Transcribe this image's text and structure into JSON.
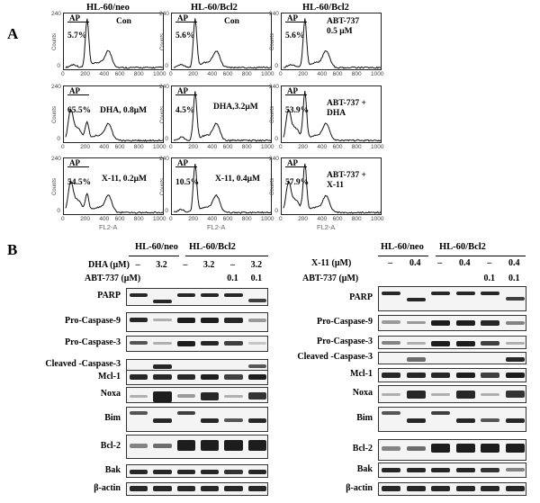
{
  "panel_a": {
    "letter": "A",
    "columns": [
      "HL-60/neo",
      "HL-60/Bcl2",
      "HL-60/Bcl2"
    ],
    "ap_label": "AP",
    "y_axis_label": "Counts",
    "y_ticks": [
      "240",
      "0"
    ],
    "x_axis_label": "FL2-A",
    "x_ticks": [
      "0",
      "200",
      "400",
      "600",
      "800",
      "1000"
    ],
    "plots": [
      {
        "pct": "5.7%",
        "cond1": "Con",
        "cond2": ""
      },
      {
        "pct": "5.6%",
        "cond1": "Con",
        "cond2": ""
      },
      {
        "pct": "5.6%",
        "cond1": "ABT-737",
        "cond2": "0.5 μM"
      },
      {
        "pct": "65.5%",
        "cond1": "DHA,  0.8μM",
        "cond2": ""
      },
      {
        "pct": "4.5%",
        "cond1": "DHA,3.2μM",
        "cond2": ""
      },
      {
        "pct": "53.9%",
        "cond1": "ABT-737 +",
        "cond2": "DHA"
      },
      {
        "pct": "54.5%",
        "cond1": "X-11,  0.2μM",
        "cond2": ""
      },
      {
        "pct": "10.5%",
        "cond1": "X-11,  0.4μM",
        "cond2": ""
      },
      {
        "pct": "57.9%",
        "cond1": "ABT-737 +",
        "cond2": "X-11"
      }
    ]
  },
  "panel_b": {
    "letter": "B",
    "left": {
      "group1": "HL-60/neo",
      "group2": "HL-60/Bcl2",
      "row1_label": "DHA  (μM)",
      "row1_values": [
        "–",
        "3.2",
        "–",
        "3.2",
        "–",
        "3.2"
      ],
      "row2_label": "ABT-737 (μM)",
      "row2_values": [
        "",
        "",
        "",
        "",
        "0.1",
        "0.1"
      ],
      "proteins": [
        "PARP",
        "Pro-Caspase-9",
        "Pro-Caspase-3",
        "Cleaved  -Caspase-3",
        "Mcl-1",
        "Noxa",
        "Bim",
        "Bcl-2",
        "Bak",
        "β-actin"
      ]
    },
    "right": {
      "group1": "HL-60/neo",
      "group2": "HL-60/Bcl2",
      "row1_label": "X-11  (μM)",
      "row1_values": [
        "–",
        "0.4",
        "–",
        "0.4",
        "–",
        "0.4"
      ],
      "row2_label": "ABT-737 (μM)",
      "row2_values": [
        "",
        "",
        "",
        "",
        "0.1",
        "0.1"
      ],
      "proteins": [
        "PARP",
        "Pro-Caspase-9",
        "Pro-Caspase-3",
        "Cleaved  -Caspase-3",
        "Mcl-1",
        "Noxa",
        "Bim",
        "Bcl-2",
        "Bak",
        "β-actin"
      ]
    }
  }
}
